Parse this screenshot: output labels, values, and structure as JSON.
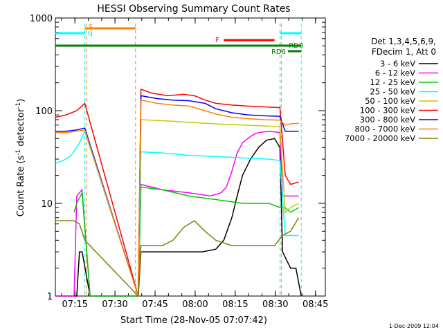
{
  "chart_data": {
    "type": "line",
    "title": "HESSI Observing Summary Count Rates",
    "xlabel": "Start Time (28-Nov-05 07:07:42)",
    "ylabel_main": "Count Rate (s",
    "ylabel_sup1": "-1",
    "ylabel_mid": " detector",
    "ylabel_sup2": "-1",
    "ylabel_end": ")",
    "yscale": "log",
    "ylim": [
      1,
      1000
    ],
    "xlim_minutes": [
      0,
      101
    ],
    "y_ticks": [
      {
        "value": 1,
        "label": "1"
      },
      {
        "value": 10,
        "label": "10"
      },
      {
        "value": 100,
        "label": "100"
      },
      {
        "value": 1000,
        "label": "1000"
      }
    ],
    "x_ticks": [
      {
        "minute": 7.3,
        "label": "07:15"
      },
      {
        "minute": 22.3,
        "label": "07:30"
      },
      {
        "minute": 37.3,
        "label": "07:45"
      },
      {
        "minute": 52.3,
        "label": "08:00"
      },
      {
        "minute": 67.3,
        "label": "08:15"
      },
      {
        "minute": 82.3,
        "label": "08:30"
      },
      {
        "minute": 97.3,
        "label": "08:45"
      }
    ],
    "legend_header": [
      "Det 1,3,4,5,6,9,",
      "FDecim 1, Att 0"
    ],
    "series": [
      {
        "name": "3 - 6 keV",
        "color": "#000000",
        "points": [
          [
            0,
            1
          ],
          [
            8,
            1
          ],
          [
            9,
            3
          ],
          [
            10,
            3
          ],
          [
            13,
            1
          ],
          [
            31,
            1
          ],
          [
            32,
            3
          ],
          [
            40,
            3
          ],
          [
            50,
            3
          ],
          [
            55,
            3
          ],
          [
            60,
            3.2
          ],
          [
            63,
            4
          ],
          [
            66,
            7
          ],
          [
            68,
            12
          ],
          [
            70,
            20
          ],
          [
            73,
            30
          ],
          [
            76,
            40
          ],
          [
            79,
            48
          ],
          [
            82,
            50
          ],
          [
            84,
            40
          ],
          [
            85,
            3
          ],
          [
            88,
            2
          ],
          [
            90,
            2
          ],
          [
            92,
            1
          ]
        ]
      },
      {
        "name": "6 - 12 keV",
        "color": "#ff00ff",
        "points": [
          [
            0,
            1
          ],
          [
            7,
            1
          ],
          [
            8,
            12
          ],
          [
            10,
            14
          ],
          [
            13,
            1
          ],
          [
            31,
            1
          ],
          [
            32,
            16
          ],
          [
            40,
            14
          ],
          [
            50,
            13
          ],
          [
            58,
            12
          ],
          [
            62,
            13
          ],
          [
            64,
            15
          ],
          [
            66,
            22
          ],
          [
            68,
            35
          ],
          [
            70,
            45
          ],
          [
            72,
            50
          ],
          [
            74,
            55
          ],
          [
            76,
            58
          ],
          [
            80,
            60
          ],
          [
            84,
            58
          ],
          [
            85,
            12
          ],
          [
            88,
            12
          ],
          [
            91,
            12
          ]
        ]
      },
      {
        "name": "12 - 25 keV",
        "color": "#00cc00",
        "points": [
          [
            7,
            8
          ],
          [
            8,
            10
          ],
          [
            10,
            13
          ],
          [
            13,
            1
          ],
          [
            31,
            1
          ],
          [
            32,
            15
          ],
          [
            40,
            14
          ],
          [
            50,
            12
          ],
          [
            60,
            11
          ],
          [
            70,
            10
          ],
          [
            80,
            10
          ],
          [
            84,
            9
          ],
          [
            86,
            9
          ],
          [
            88,
            8
          ],
          [
            91,
            9
          ]
        ]
      },
      {
        "name": "25 - 50 keV",
        "color": "#00ffff",
        "points": [
          [
            0,
            27
          ],
          [
            3,
            29
          ],
          [
            6,
            33
          ],
          [
            9,
            45
          ],
          [
            11,
            60
          ],
          [
            31,
            1
          ],
          [
            32,
            36
          ],
          [
            40,
            35
          ],
          [
            50,
            33
          ],
          [
            60,
            32
          ],
          [
            70,
            31
          ],
          [
            80,
            30
          ],
          [
            84,
            29
          ],
          [
            86,
            4.5
          ],
          [
            91,
            4.5
          ]
        ]
      },
      {
        "name": "50 - 100 keV",
        "color": "#c8c800",
        "points": [
          [
            31,
            1
          ],
          [
            32,
            80
          ],
          [
            40,
            78
          ],
          [
            50,
            75
          ],
          [
            60,
            72
          ],
          [
            70,
            70
          ],
          [
            80,
            68
          ],
          [
            84,
            67
          ],
          [
            86,
            8
          ],
          [
            88,
            9
          ],
          [
            91,
            10
          ]
        ]
      },
      {
        "name": "100 - 300 keV",
        "color": "#ff0000",
        "points": [
          [
            0,
            85
          ],
          [
            4,
            90
          ],
          [
            8,
            100
          ],
          [
            11,
            120
          ],
          [
            31,
            1
          ],
          [
            32,
            170
          ],
          [
            36,
            155
          ],
          [
            42,
            145
          ],
          [
            48,
            150
          ],
          [
            52,
            145
          ],
          [
            56,
            130
          ],
          [
            60,
            120
          ],
          [
            66,
            115
          ],
          [
            72,
            112
          ],
          [
            78,
            110
          ],
          [
            84,
            108
          ],
          [
            86,
            20
          ],
          [
            88,
            16
          ],
          [
            91,
            17
          ]
        ]
      },
      {
        "name": "300 - 800 keV",
        "color": "#0000ff",
        "points": [
          [
            0,
            60
          ],
          [
            4,
            60
          ],
          [
            8,
            62
          ],
          [
            11,
            65
          ],
          [
            31,
            1
          ],
          [
            32,
            145
          ],
          [
            38,
            135
          ],
          [
            44,
            130
          ],
          [
            50,
            128
          ],
          [
            56,
            120
          ],
          [
            60,
            105
          ],
          [
            66,
            95
          ],
          [
            72,
            90
          ],
          [
            78,
            88
          ],
          [
            84,
            87
          ],
          [
            86,
            60
          ],
          [
            88,
            60
          ],
          [
            91,
            60
          ]
        ]
      },
      {
        "name": "800 - 7000 keV",
        "color": "#ff8000",
        "points": [
          [
            0,
            58
          ],
          [
            4,
            58
          ],
          [
            8,
            60
          ],
          [
            11,
            62
          ],
          [
            31,
            1
          ],
          [
            32,
            130
          ],
          [
            38,
            120
          ],
          [
            44,
            115
          ],
          [
            50,
            112
          ],
          [
            56,
            100
          ],
          [
            60,
            92
          ],
          [
            66,
            85
          ],
          [
            72,
            82
          ],
          [
            78,
            80
          ],
          [
            84,
            79
          ],
          [
            86,
            70
          ],
          [
            88,
            72
          ],
          [
            91,
            73
          ]
        ]
      },
      {
        "name": "7000 - 20000 keV",
        "color": "#808000",
        "points": [
          [
            0,
            6.5
          ],
          [
            4,
            6.5
          ],
          [
            7,
            6.5
          ],
          [
            9,
            6
          ],
          [
            11,
            4
          ],
          [
            31,
            1
          ],
          [
            32,
            3.5
          ],
          [
            40,
            3.5
          ],
          [
            44,
            4
          ],
          [
            48,
            5.5
          ],
          [
            52,
            6.5
          ],
          [
            56,
            5
          ],
          [
            60,
            4
          ],
          [
            66,
            3.5
          ],
          [
            72,
            3.5
          ],
          [
            78,
            3.5
          ],
          [
            82,
            3.5
          ],
          [
            85,
            4.5
          ],
          [
            88,
            5
          ],
          [
            91,
            7
          ]
        ]
      }
    ],
    "annotations": {
      "saa_label": "S",
      "night_label": "N",
      "flare_label": "F",
      "rd0_label": "RD0",
      "rd6_label": "RD6"
    },
    "flag_bars": [
      {
        "label_key": "night_label",
        "color": "#00ffff",
        "start": 0,
        "end": 11
      },
      {
        "label_key": "saa_label",
        "color": "#ff8000",
        "start": 11,
        "end": 30
      },
      {
        "label_key": "flare_label",
        "color": "#ff0000",
        "start": 63,
        "end": 82
      },
      {
        "label_key": "night_label",
        "color": "#00ffff",
        "start": 84,
        "end": 92
      },
      {
        "label_key": "rd0_label",
        "color": "#008000",
        "start": 0,
        "end": 92
      },
      {
        "label_key": "rd6_label",
        "color": "#008000",
        "start": 87,
        "end": 92
      }
    ],
    "vertical_markers": [
      {
        "minute": 11,
        "color": "#00ffff"
      },
      {
        "minute": 11.5,
        "color": "#ff8000"
      },
      {
        "minute": 30,
        "color": "#ff8000"
      },
      {
        "minute": 84,
        "color": "#00ffff"
      },
      {
        "minute": 84.5,
        "color": "#ff8000"
      },
      {
        "minute": 92,
        "color": "#00ffff"
      }
    ],
    "footer_date": "1-Dec-2009 12:04"
  }
}
